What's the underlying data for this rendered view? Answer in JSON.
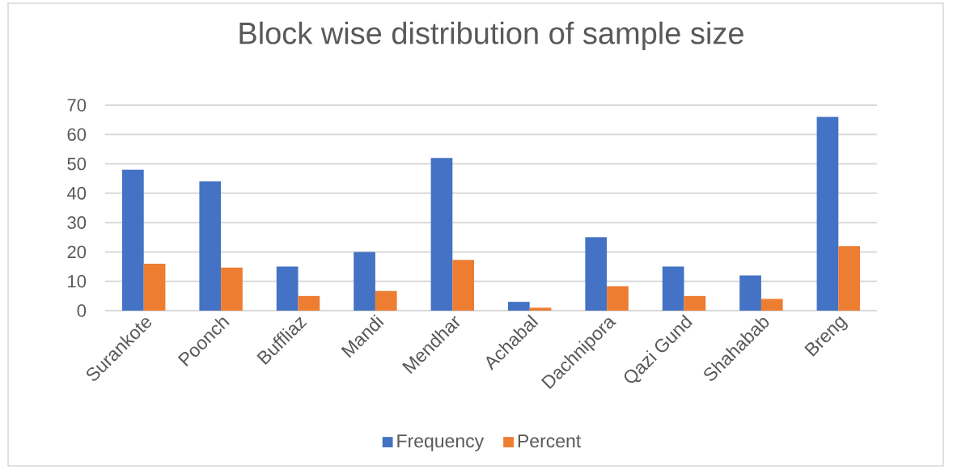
{
  "chart_data": {
    "type": "bar",
    "title": "Block wise distribution of sample size",
    "categories": [
      "Surankote",
      "Poonch",
      "Buffliaz",
      "Mandi",
      "Mendhar",
      "Achabal",
      "Dachnipora",
      "Qazi Gund",
      "Shahabab",
      "Breng"
    ],
    "series": [
      {
        "name": "Frequency",
        "color": "#4472c4",
        "values": [
          48,
          44,
          15,
          20,
          52,
          3,
          25,
          15,
          12,
          66
        ]
      },
      {
        "name": "Percent",
        "color": "#ed7d31",
        "values": [
          16,
          14.7,
          5,
          6.7,
          17.3,
          1,
          8.3,
          5,
          4,
          22
        ]
      }
    ],
    "ylim": [
      0,
      70
    ],
    "yticks": [
      0,
      10,
      20,
      30,
      40,
      50,
      60,
      70
    ],
    "grid": "y",
    "legend": "bottom"
  }
}
